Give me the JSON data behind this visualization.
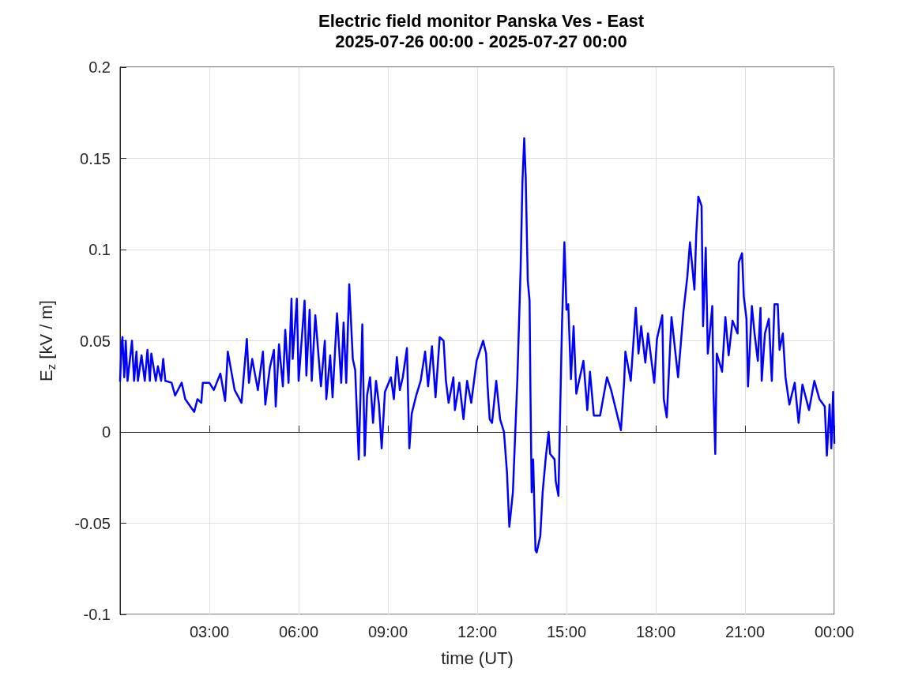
{
  "chart_data": {
    "type": "line",
    "title": "Electric field monitor Panska Ves - East",
    "subtitle": "2025-07-26 00:00 - 2025-07-27 00:00",
    "xlabel": "time (UT)",
    "ylabel": "E$_{z}$ [kV / m]",
    "xlim": [
      0,
      24
    ],
    "xticks": [
      {
        "value": 3,
        "label": "03:00"
      },
      {
        "value": 6,
        "label": "06:00"
      },
      {
        "value": 9,
        "label": "09:00"
      },
      {
        "value": 12,
        "label": "12:00"
      },
      {
        "value": 15,
        "label": "15:00"
      },
      {
        "value": 18,
        "label": "18:00"
      },
      {
        "value": 21,
        "label": "21:00"
      },
      {
        "value": 24,
        "label": "00:00"
      }
    ],
    "ylim": [
      -0.1,
      0.2
    ],
    "yticks": [
      -0.1,
      -0.05,
      0,
      0.05,
      0.1,
      0.15,
      0.2
    ],
    "grid": true,
    "marker": "none",
    "line_style": "solid",
    "series": [
      {
        "color": "#0000ff",
        "x": [
          0,
          0.05,
          0.08,
          0.14,
          0.19,
          0.25,
          0.4,
          0.47,
          0.55,
          0.6,
          0.72,
          0.83,
          0.92,
          1.0,
          1.05,
          1.2,
          1.27,
          1.38,
          1.45,
          1.52,
          1.73,
          1.85,
          2.07,
          2.19,
          2.49,
          2.6,
          2.73,
          2.78,
          3.0,
          3.15,
          3.37,
          3.53,
          3.62,
          3.85,
          4.08,
          4.26,
          4.33,
          4.44,
          4.63,
          4.8,
          4.88,
          5.03,
          5.17,
          5.23,
          5.34,
          5.47,
          5.55,
          5.66,
          5.76,
          5.8,
          5.94,
          6.0,
          6.2,
          6.26,
          6.37,
          6.44,
          6.56,
          6.75,
          6.88,
          6.93,
          7.06,
          7.14,
          7.29,
          7.43,
          7.51,
          7.6,
          7.7,
          7.82,
          7.9,
          8.02,
          8.14,
          8.22,
          8.3,
          8.4,
          8.5,
          8.6,
          8.7,
          8.79,
          8.9,
          9.1,
          9.2,
          9.3,
          9.4,
          9.5,
          9.64,
          9.72,
          9.8,
          9.95,
          10.1,
          10.25,
          10.35,
          10.48,
          10.6,
          10.74,
          10.87,
          10.95,
          11.04,
          11.2,
          11.25,
          11.4,
          11.54,
          11.66,
          11.8,
          11.98,
          12.2,
          12.3,
          12.35,
          12.42,
          12.5,
          12.64,
          12.77,
          12.9,
          13.0,
          13.08,
          13.2,
          13.35,
          13.46,
          13.52,
          13.58,
          13.63,
          13.7,
          13.76,
          13.79,
          13.83,
          13.88,
          13.96,
          14.0,
          14.12,
          14.2,
          14.31,
          14.4,
          14.45,
          14.6,
          14.64,
          14.73,
          14.78,
          14.85,
          14.93,
          15.0,
          15.06,
          15.15,
          15.24,
          15.33,
          15.57,
          15.7,
          15.79,
          15.92,
          16.13,
          16.36,
          16.5,
          16.83,
          16.94,
          16.98,
          17.16,
          17.33,
          17.42,
          17.51,
          17.65,
          17.74,
          17.95,
          18.04,
          18.22,
          18.27,
          18.37,
          18.53,
          18.75,
          18.93,
          19.06,
          19.15,
          19.3,
          19.36,
          19.43,
          19.54,
          19.59,
          19.68,
          19.75,
          19.9,
          19.94,
          20.0,
          20.05,
          20.23,
          20.34,
          20.45,
          20.58,
          20.75,
          20.79,
          20.9,
          20.96,
          21.05,
          21.1,
          21.23,
          21.32,
          21.43,
          21.52,
          21.56,
          21.67,
          21.8,
          21.9,
          21.99,
          22.1,
          22.16,
          22.27,
          22.36,
          22.49,
          22.67,
          22.8,
          22.93,
          23.15,
          23.33,
          23.5,
          23.68,
          23.75,
          23.84,
          23.9,
          23.96,
          24.0
        ],
        "values": [
          0.028,
          0.048,
          0.052,
          0.03,
          0.05,
          0.028,
          0.05,
          0.028,
          0.044,
          0.028,
          0.042,
          0.028,
          0.045,
          0.028,
          0.043,
          0.028,
          0.036,
          0.028,
          0.04,
          0.028,
          0.027,
          0.02,
          0.027,
          0.018,
          0.011,
          0.018,
          0.016,
          0.027,
          0.027,
          0.023,
          0.032,
          0.017,
          0.044,
          0.023,
          0.016,
          0.051,
          0.027,
          0.04,
          0.023,
          0.044,
          0.015,
          0.035,
          0.045,
          0.014,
          0.048,
          0.025,
          0.056,
          0.027,
          0.073,
          0.04,
          0.073,
          0.028,
          0.072,
          0.031,
          0.067,
          0.028,
          0.064,
          0.025,
          0.05,
          0.018,
          0.042,
          0.019,
          0.065,
          0.027,
          0.06,
          0.027,
          0.081,
          0.04,
          0.034,
          -0.015,
          0.059,
          -0.013,
          0.02,
          0.03,
          0.005,
          0.028,
          0.015,
          -0.009,
          0.022,
          0.03,
          0.018,
          0.041,
          0.023,
          0.03,
          0.046,
          -0.009,
          0.01,
          0.02,
          0.028,
          0.044,
          0.025,
          0.047,
          0.019,
          0.052,
          0.05,
          0.028,
          0.016,
          0.03,
          0.012,
          0.027,
          0.007,
          0.028,
          0.016,
          0.039,
          0.05,
          0.043,
          0.025,
          0.007,
          0.005,
          0.028,
          0.007,
          0.0,
          -0.022,
          -0.052,
          -0.033,
          0.029,
          0.09,
          0.137,
          0.161,
          0.14,
          0.083,
          0.072,
          0.021,
          -0.033,
          -0.015,
          -0.065,
          -0.066,
          -0.057,
          -0.033,
          -0.013,
          0.0,
          -0.012,
          -0.015,
          -0.027,
          -0.035,
          0.005,
          0.059,
          0.104,
          0.067,
          0.07,
          0.029,
          0.058,
          0.021,
          0.039,
          0.012,
          0.033,
          0.009,
          0.009,
          0.03,
          0.023,
          0.001,
          0.028,
          0.044,
          0.028,
          0.068,
          0.043,
          0.058,
          0.038,
          0.054,
          0.027,
          0.051,
          0.064,
          0.018,
          0.008,
          0.063,
          0.03,
          0.066,
          0.085,
          0.104,
          0.078,
          0.108,
          0.129,
          0.124,
          0.058,
          0.101,
          0.043,
          0.069,
          0.022,
          -0.012,
          0.043,
          0.033,
          0.063,
          0.042,
          0.061,
          0.054,
          0.093,
          0.098,
          0.074,
          0.062,
          0.025,
          0.069,
          0.054,
          0.039,
          0.068,
          0.028,
          0.054,
          0.062,
          0.028,
          0.07,
          0.07,
          0.045,
          0.054,
          0.03,
          0.015,
          0.027,
          0.005,
          0.026,
          0.012,
          0.028,
          0.018,
          0.014,
          -0.013,
          0.015,
          -0.009,
          0.022,
          -0.006
        ]
      }
    ]
  }
}
